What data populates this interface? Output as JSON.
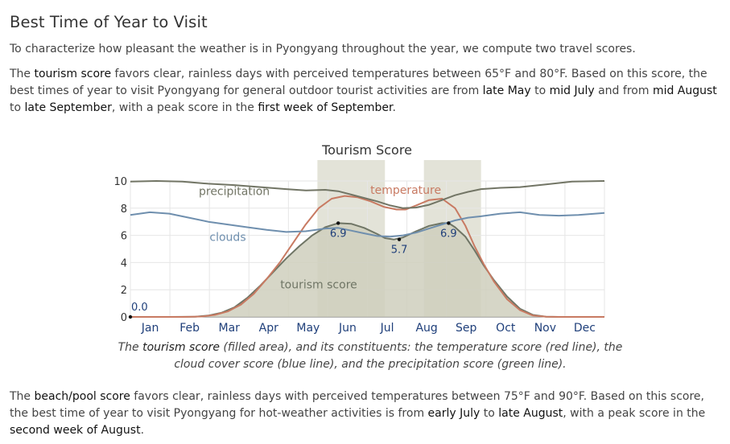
{
  "heading": "Best Time of Year to Visit",
  "intro": "To characterize how pleasant the weather is in Pyongyang throughout the year, we compute two travel scores.",
  "tourism_paragraph": {
    "p1": "The ",
    "term": "tourism score",
    "p2": " favors clear, rainless days with perceived temperatures between 65°F and 80°F. Based on this score, the best times of year to visit Pyongyang for general outdoor tourist activities are from ",
    "r1": "late May",
    "p3": " to ",
    "r2": "mid July",
    "p4": " and from ",
    "r3": "mid August",
    "p5": " to ",
    "r4": "late September",
    "p6": ", with a peak score in the ",
    "r5": "first week of September",
    "p7": "."
  },
  "caption": {
    "c1": "The ",
    "term": "tourism score",
    "c2": " (filled area), and its constituents: the temperature score (red line), the cloud cover score (blue line), and the precipitation score (green line)."
  },
  "beach_paragraph": {
    "p1": "The ",
    "term": "beach/pool score",
    "p2": " favors clear, rainless days with perceived temperatures between 75°F and 90°F. Based on this score, the best time of year to visit Pyongyang for hot-weather activities is from ",
    "r1": "early July",
    "p3": " to ",
    "r2": "late August",
    "p4": ", with a peak score in the ",
    "r3": "second week of August",
    "p5": "."
  },
  "chart_data": {
    "type": "area",
    "title": "Tourism Score",
    "ylim": [
      0,
      10
    ],
    "yticks": [
      0,
      2,
      4,
      6,
      8,
      10
    ],
    "months": [
      "Jan",
      "Feb",
      "Mar",
      "Apr",
      "May",
      "Jun",
      "Jul",
      "Aug",
      "Sep",
      "Oct",
      "Nov",
      "Dec"
    ],
    "x_domain": [
      0,
      365
    ],
    "grid": true,
    "highlight_ranges": [
      [
        144,
        196
      ],
      [
        226,
        270
      ]
    ],
    "series": [
      {
        "name": "tourism score",
        "role": "filled-area",
        "color": "#6f7565",
        "fill": "#cfcfbd",
        "x": [
          0,
          30,
          50,
          60,
          70,
          80,
          90,
          100,
          110,
          120,
          130,
          140,
          150,
          160,
          170,
          180,
          190,
          196,
          203,
          210,
          220,
          230,
          240,
          245,
          250,
          258,
          265,
          272,
          280,
          290,
          300,
          310,
          320,
          330,
          340,
          365
        ],
        "y": [
          0,
          0,
          0.02,
          0.1,
          0.3,
          0.7,
          1.4,
          2.3,
          3.3,
          4.3,
          5.2,
          6.0,
          6.6,
          6.9,
          6.85,
          6.55,
          6.1,
          5.8,
          5.7,
          5.85,
          6.3,
          6.7,
          6.9,
          6.9,
          6.6,
          5.9,
          4.9,
          3.8,
          2.7,
          1.5,
          0.6,
          0.15,
          0.02,
          0,
          0,
          0
        ]
      },
      {
        "name": "temperature",
        "color": "#c87a62",
        "x": [
          0,
          40,
          55,
          65,
          75,
          85,
          95,
          105,
          115,
          125,
          135,
          145,
          155,
          165,
          175,
          185,
          195,
          205,
          212,
          220,
          230,
          240,
          250,
          258,
          265,
          272,
          280,
          290,
          300,
          310,
          320,
          330,
          365
        ],
        "y": [
          0,
          0,
          0.03,
          0.15,
          0.4,
          0.9,
          1.7,
          2.8,
          4.0,
          5.4,
          6.8,
          8.0,
          8.7,
          8.9,
          8.8,
          8.5,
          8.1,
          7.9,
          7.9,
          8.2,
          8.6,
          8.7,
          8.0,
          6.7,
          5.2,
          3.9,
          2.6,
          1.3,
          0.5,
          0.1,
          0.02,
          0,
          0
        ]
      },
      {
        "name": "clouds",
        "color": "#6f8fae",
        "x": [
          0,
          15,
          30,
          45,
          60,
          75,
          90,
          105,
          120,
          135,
          150,
          160,
          170,
          180,
          190,
          200,
          210,
          220,
          230,
          240,
          250,
          260,
          270,
          285,
          300,
          315,
          330,
          345,
          365
        ],
        "y": [
          7.5,
          7.7,
          7.6,
          7.3,
          7.0,
          6.8,
          6.6,
          6.4,
          6.25,
          6.3,
          6.5,
          6.55,
          6.35,
          6.15,
          5.95,
          5.9,
          6.0,
          6.2,
          6.5,
          6.8,
          7.1,
          7.3,
          7.4,
          7.6,
          7.7,
          7.5,
          7.45,
          7.5,
          7.65
        ]
      },
      {
        "name": "precipitation",
        "color": "#727565",
        "x": [
          0,
          20,
          40,
          60,
          80,
          100,
          120,
          135,
          150,
          160,
          170,
          180,
          190,
          200,
          210,
          220,
          230,
          240,
          250,
          260,
          270,
          285,
          300,
          320,
          340,
          365
        ],
        "y": [
          9.95,
          10.0,
          9.95,
          9.8,
          9.7,
          9.55,
          9.4,
          9.3,
          9.35,
          9.25,
          9.0,
          8.75,
          8.5,
          8.2,
          8.0,
          8.05,
          8.25,
          8.6,
          8.95,
          9.2,
          9.4,
          9.5,
          9.55,
          9.75,
          9.95,
          10.0
        ]
      }
    ],
    "point_labels": [
      {
        "x": 0,
        "y": 0.0,
        "label": "0.0"
      },
      {
        "x": 160,
        "y": 6.9,
        "label": "6.9"
      },
      {
        "x": 207,
        "y": 5.7,
        "label": "5.7"
      },
      {
        "x": 245,
        "y": 6.9,
        "label": "6.9"
      }
    ],
    "series_labels": [
      {
        "series": "precipitation",
        "text": "precipitation",
        "x": 80,
        "y": 9.25
      },
      {
        "series": "temperature",
        "text": "temperature",
        "x": 212,
        "y": 9.35
      },
      {
        "series": "clouds",
        "text": "clouds",
        "x": 75,
        "y": 5.9
      },
      {
        "series": "tourism score",
        "text": "tourism score",
        "x": 145,
        "y": 2.4
      }
    ]
  }
}
